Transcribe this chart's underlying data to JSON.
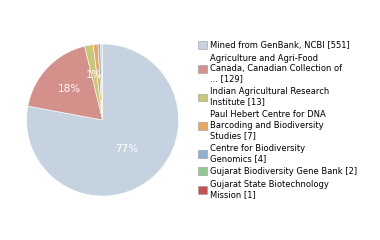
{
  "labels": [
    "Mined from GenBank, NCBI [551]",
    "Agriculture and Agri-Food\nCanada, Canadian Collection of\n... [129]",
    "Indian Agricultural Research\nInstitute [13]",
    "Paul Hebert Centre for DNA\nBarcoding and Biodiversity\nStudies [7]",
    "Centre for Biodiversity\nGenomics [4]",
    "Gujarat Biodiversity Gene Bank [2]",
    "Gujarat State Biotechnology\nMission [1]"
  ],
  "values": [
    551,
    129,
    13,
    7,
    4,
    2,
    1
  ],
  "colors": [
    "#c5d3e0",
    "#d4908a",
    "#c8c87a",
    "#e8a860",
    "#8fb0d0",
    "#90c890",
    "#c85050"
  ],
  "pct_labels": [
    "77%",
    "18%",
    "1%",
    "",
    "",
    "",
    ""
  ],
  "startangle": 90,
  "background_color": "#ffffff",
  "legend_fontsize": 6.0,
  "pct_fontsize": 7.5
}
